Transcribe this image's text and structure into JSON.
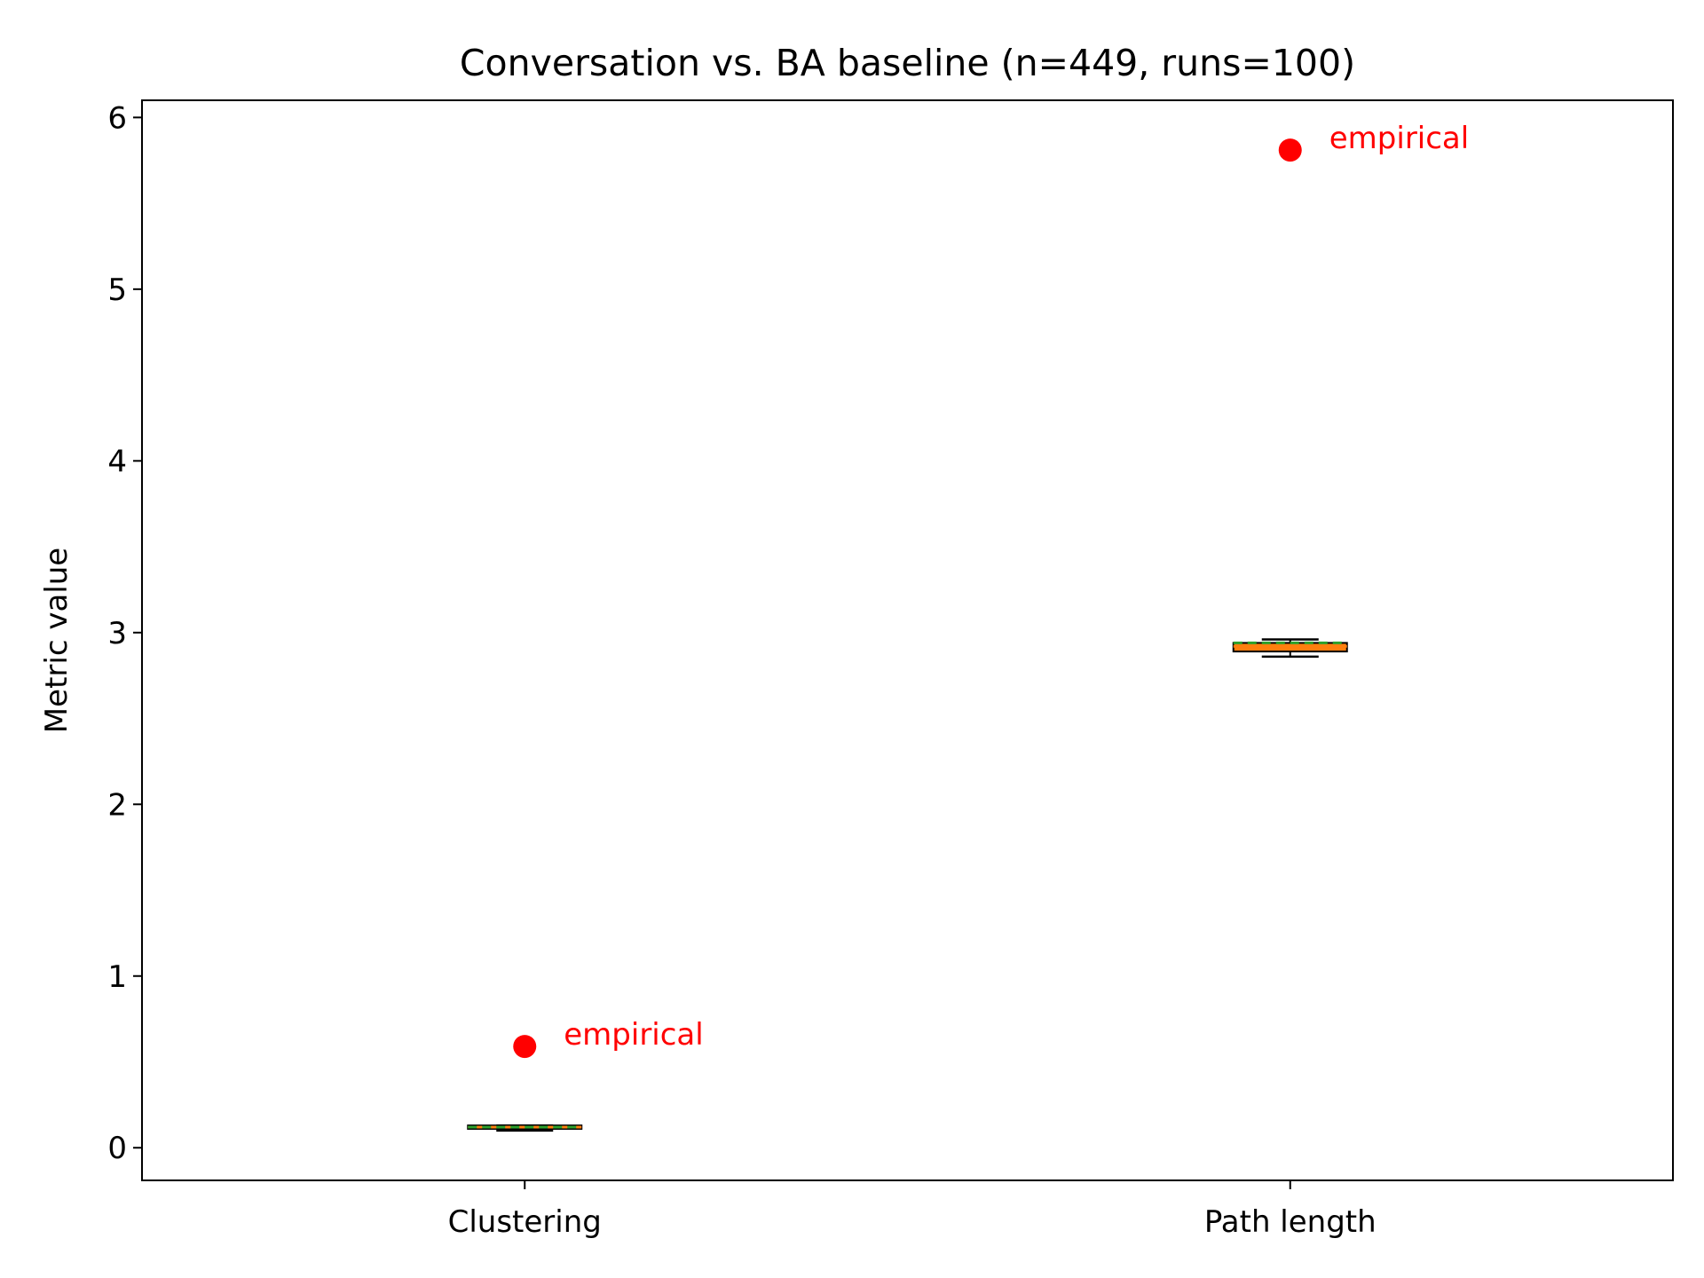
{
  "chart_data": {
    "type": "box",
    "title": "Conversation vs. BA baseline (n=449, runs=100)",
    "xlabel": "",
    "ylabel": "Metric value",
    "categories": [
      "Clustering",
      "Path length"
    ],
    "ylim": [
      -0.19,
      6.1
    ],
    "yticks": [
      0,
      1,
      2,
      3,
      4,
      5,
      6
    ],
    "grid": false,
    "boxes": [
      {
        "category": "Clustering",
        "min": 0.1,
        "q1": 0.11,
        "median": 0.12,
        "mean": 0.12,
        "q3": 0.13,
        "max": 0.13
      },
      {
        "category": "Path length",
        "min": 2.86,
        "q1": 2.89,
        "median": 2.92,
        "mean": 2.94,
        "q3": 2.94,
        "max": 2.96
      }
    ],
    "empirical": [
      {
        "category": "Clustering",
        "value": 0.59,
        "label": "empirical"
      },
      {
        "category": "Path length",
        "value": 5.81,
        "label": "empirical"
      }
    ],
    "colors": {
      "box_face": "#ff7f0e",
      "median": "#ff7f0e",
      "mean_line": "#2ca02c",
      "empirical": "#ff0000",
      "edge": "#000000"
    }
  }
}
